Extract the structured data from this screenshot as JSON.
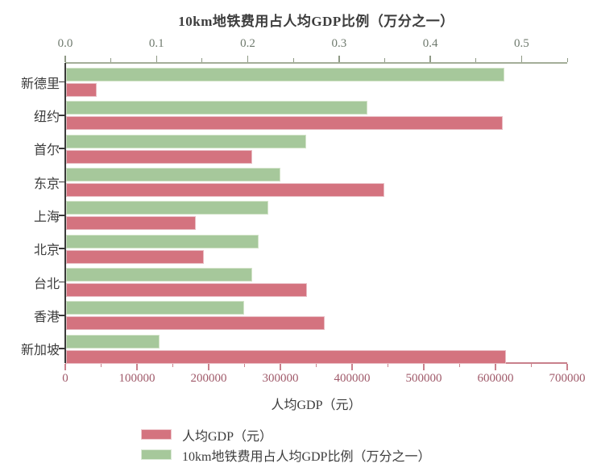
{
  "title": "10km地铁费用占人均GDP比例（万分之一）",
  "chart_data": {
    "type": "bar",
    "orientation": "horizontal",
    "categories": [
      "新德里",
      "纽约",
      "首尔",
      "东京",
      "上海",
      "北京",
      "台北",
      "香港",
      "新加坡"
    ],
    "series": [
      {
        "name": "人均GDP（元）",
        "axis": "bottom",
        "color": "#d4737f",
        "border_color": "#e8bcc3",
        "values": [
          43000,
          609000,
          259000,
          444000,
          181000,
          192000,
          336000,
          361000,
          613000
        ]
      },
      {
        "name": "10km地铁费用占人均GDP比例（万分之一）",
        "axis": "top",
        "color": "#a6c89b",
        "border_color": "#d2e3c8",
        "values": [
          0.48,
          0.33,
          0.263,
          0.235,
          0.222,
          0.211,
          0.204,
          0.195,
          0.102
        ]
      }
    ],
    "axes": {
      "top": {
        "title": "10km地铁费用占人均GDP比例（万分之一）",
        "min": 0,
        "max": 0.55,
        "major_step": 0.1,
        "minor_step": 0.05,
        "tick_labels": [
          "0.0",
          "0.1",
          "0.2",
          "0.3",
          "0.4",
          "0.5"
        ],
        "line_color": "#a4ae99",
        "tick_color": "#8f9a86",
        "label_color": "#6f7a6e"
      },
      "bottom": {
        "title": "人均GDP（元）",
        "min": 0,
        "max": 700000,
        "major_step": 100000,
        "minor_step": 50000,
        "tick_labels": [
          "0",
          "100000",
          "200000",
          "300000",
          "400000",
          "500000",
          "600000",
          "700000"
        ],
        "line_color": "#c9818c",
        "tick_color": "#c9818c",
        "label_color": "#a05a6a"
      },
      "left": {
        "line_color": "#3a3a3a",
        "tick_color": "#3a3a3a",
        "label_color": "#3c3c3c"
      }
    },
    "legend": {
      "position": "bottom-left",
      "items": [
        {
          "label": "人均GDP（元）",
          "color": "#d4737f"
        },
        {
          "label": "10km地铁费用占人均GDP比例（万分之一）",
          "color": "#a6c89b"
        }
      ]
    },
    "grid": false
  }
}
